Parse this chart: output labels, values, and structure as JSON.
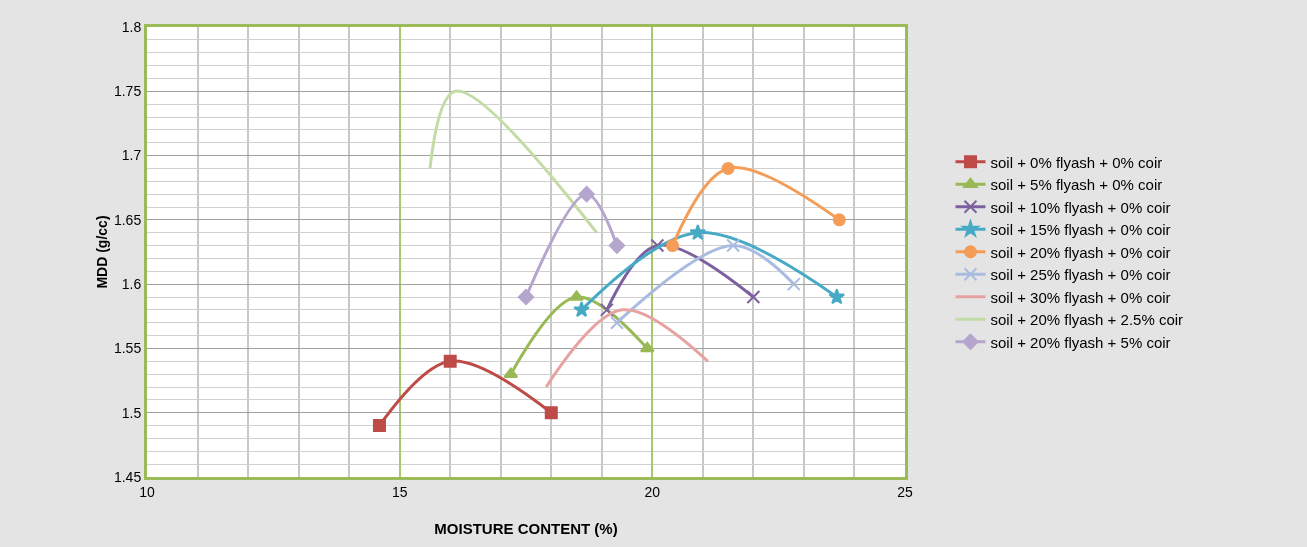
{
  "chart_data": {
    "type": "line",
    "xlabel": "MOISTURE CONTENT (%)",
    "ylabel": "MDD (g/cc)",
    "xlim": [
      10,
      25
    ],
    "xticks": [
      10,
      15,
      20,
      25
    ],
    "ylim": [
      1.45,
      1.8
    ],
    "yticks": [
      1.45,
      1.5,
      1.55,
      1.6,
      1.65,
      1.7,
      1.75,
      1.8
    ],
    "grid": true,
    "legend": "right",
    "series": [
      {
        "name": "soil + 0% flyash + 0% coir",
        "color": "#be4b48",
        "marker": "square",
        "x": [
          14.6,
          16.0,
          18.0
        ],
        "values": [
          1.49,
          1.54,
          1.5
        ]
      },
      {
        "name": "soil + 5% flyash + 0% coir",
        "color": "#98b954",
        "marker": "triangle",
        "x": [
          17.2,
          18.5,
          19.9
        ],
        "values": [
          1.53,
          1.59,
          1.55
        ]
      },
      {
        "name": "soil + 10% flyash + 0% coir",
        "color": "#7d60a0",
        "marker": "cross",
        "x": [
          19.1,
          20.1,
          22.0
        ],
        "values": [
          1.58,
          1.63,
          1.59
        ]
      },
      {
        "name": "soil + 15% flyash + 0% coir",
        "color": "#46aac5",
        "marker": "star",
        "x": [
          18.6,
          20.9,
          23.65
        ],
        "values": [
          1.58,
          1.64,
          1.59
        ]
      },
      {
        "name": "soil + 20% flyash + 0% coir",
        "color": "#f59d56",
        "marker": "circle",
        "x": [
          20.4,
          21.5,
          23.7
        ],
        "values": [
          1.63,
          1.69,
          1.65
        ]
      },
      {
        "name": "soil + 25% flyash + 0% coir",
        "color": "#a9bce0",
        "marker": "cross",
        "x": [
          19.3,
          21.6,
          22.8
        ],
        "values": [
          1.57,
          1.63,
          1.6
        ]
      },
      {
        "name": "soil + 30% flyash + 0% coir",
        "color": "#e6a3a1",
        "marker": "none",
        "x": [
          17.9,
          19.4,
          21.1
        ],
        "values": [
          1.52,
          1.58,
          1.54
        ]
      },
      {
        "name": "soil + 20% flyash + 2.5% coir",
        "color": "#c3dba4",
        "marker": "none",
        "x": [
          15.6,
          16.1,
          18.9
        ],
        "values": [
          1.69,
          1.75,
          1.64
        ]
      },
      {
        "name": "soil + 20% flyash + 5% coir",
        "color": "#b4a6cc",
        "marker": "diamond",
        "x": [
          17.5,
          18.7,
          19.3
        ],
        "values": [
          1.59,
          1.67,
          1.63
        ]
      }
    ]
  }
}
